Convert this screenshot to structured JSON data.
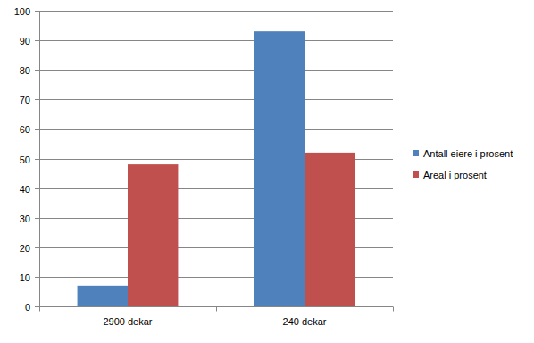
{
  "chart_data": {
    "type": "bar",
    "categories": [
      "2900 dekar",
      "240 dekar"
    ],
    "series": [
      {
        "name": "Antall eiere i prosent",
        "color": "#4f81bd",
        "values": [
          7,
          93
        ]
      },
      {
        "name": "Areal i prosent",
        "color": "#c0504d",
        "values": [
          48,
          52
        ]
      }
    ],
    "ylim": [
      0,
      100
    ],
    "yticks": [
      0,
      10,
      20,
      30,
      40,
      50,
      60,
      70,
      80,
      90,
      100
    ],
    "grid": true,
    "legend": "right"
  }
}
